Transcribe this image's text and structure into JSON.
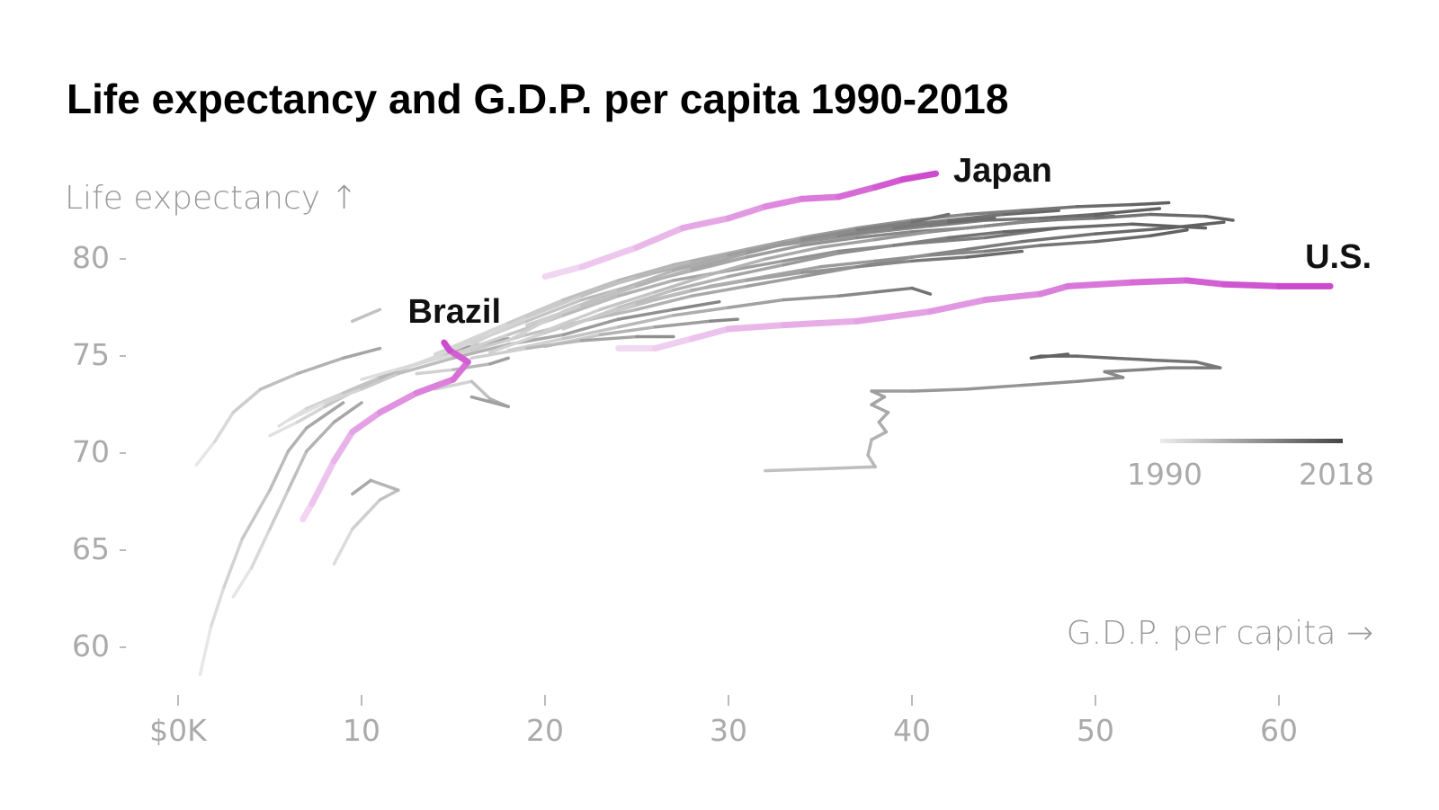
{
  "chart_data": {
    "type": "line",
    "title": "Life expectancy and G.D.P. per capita 1990-2018",
    "xlabel": "G.D.P. per capita →",
    "ylabel": "Life expectancy ↑",
    "xlim": [
      0,
      65
    ],
    "ylim": [
      58,
      83
    ],
    "x_ticks": [
      {
        "value": 0,
        "label": "$0K"
      },
      {
        "value": 10,
        "label": "10"
      },
      {
        "value": 20,
        "label": "20"
      },
      {
        "value": 30,
        "label": "30"
      },
      {
        "value": 40,
        "label": "40"
      },
      {
        "value": 50,
        "label": "50"
      },
      {
        "value": 60,
        "label": "60"
      }
    ],
    "y_ticks": [
      {
        "value": 60,
        "label": "60"
      },
      {
        "value": 65,
        "label": "65"
      },
      {
        "value": 70,
        "label": "70"
      },
      {
        "value": 75,
        "label": "75"
      },
      {
        "value": 80,
        "label": "80"
      }
    ],
    "color_legend": {
      "start_label": "1990",
      "end_label": "2018",
      "start_color": "#ececec",
      "end_color": "#444444"
    },
    "highlight_color": "#cc44cc",
    "highlighted": [
      {
        "name": "Japan",
        "points": [
          [
            20,
            79
          ],
          [
            22,
            79.5
          ],
          [
            25,
            80.5
          ],
          [
            27.5,
            81.5
          ],
          [
            30,
            82
          ],
          [
            32,
            82.6
          ],
          [
            34,
            83
          ],
          [
            36,
            83.1
          ],
          [
            38,
            83.6
          ],
          [
            39.5,
            84
          ],
          [
            41.3,
            84.3
          ]
        ]
      },
      {
        "name": "U.S.",
        "points": [
          [
            24,
            75.3
          ],
          [
            26,
            75.3
          ],
          [
            28,
            75.8
          ],
          [
            30,
            76.3
          ],
          [
            33,
            76.5
          ],
          [
            37,
            76.7
          ],
          [
            41,
            77.2
          ],
          [
            44,
            77.8
          ],
          [
            47,
            78.1
          ],
          [
            48.5,
            78.5
          ],
          [
            52,
            78.7
          ],
          [
            55,
            78.8
          ],
          [
            57,
            78.6
          ],
          [
            60,
            78.5
          ],
          [
            62.8,
            78.5
          ]
        ]
      },
      {
        "name": "Brazil",
        "points": [
          [
            6.8,
            66.5
          ],
          [
            7.3,
            67.3
          ],
          [
            8.5,
            69.5
          ],
          [
            9.5,
            71
          ],
          [
            11,
            72
          ],
          [
            13,
            73
          ],
          [
            15,
            73.7
          ],
          [
            15.8,
            74.6
          ],
          [
            14.8,
            75.2
          ],
          [
            14.5,
            75.6
          ]
        ]
      }
    ],
    "other_series": [
      [
        [
          1.2,
          58.5
        ],
        [
          1.8,
          61
        ],
        [
          2.5,
          63
        ],
        [
          3.5,
          65.5
        ],
        [
          5,
          68
        ],
        [
          6,
          70
        ],
        [
          7,
          71.2
        ],
        [
          9,
          72.5
        ]
      ],
      [
        [
          3,
          62.5
        ],
        [
          4,
          64
        ],
        [
          5,
          66
        ],
        [
          6,
          68
        ],
        [
          7,
          70
        ],
        [
          8.5,
          71.5
        ],
        [
          10,
          72.5
        ]
      ],
      [
        [
          1,
          69.3
        ],
        [
          2,
          70.5
        ],
        [
          3,
          72
        ],
        [
          4.5,
          73.2
        ],
        [
          6.5,
          74
        ],
        [
          9,
          74.8
        ],
        [
          11,
          75.3
        ]
      ],
      [
        [
          8.5,
          64.2
        ],
        [
          9.5,
          66
        ],
        [
          11,
          67.5
        ],
        [
          12,
          68
        ],
        [
          10.5,
          68.5
        ],
        [
          9.5,
          67.8
        ]
      ],
      [
        [
          9.5,
          76.7
        ],
        [
          11,
          77.3
        ]
      ],
      [
        [
          5,
          70.8
        ],
        [
          6.5,
          71.5
        ],
        [
          8,
          72.3
        ],
        [
          10,
          73.3
        ],
        [
          12,
          74.2
        ],
        [
          14,
          74.8
        ],
        [
          16,
          75.3
        ]
      ],
      [
        [
          5.5,
          71.3
        ],
        [
          7,
          72.2
        ],
        [
          9,
          73
        ],
        [
          11,
          73.8
        ],
        [
          13,
          74.5
        ],
        [
          15.5,
          75.3
        ],
        [
          18,
          75.8
        ]
      ],
      [
        [
          6,
          71.6
        ],
        [
          8,
          72.5
        ],
        [
          10,
          73.2
        ],
        [
          12,
          74
        ],
        [
          15,
          74.8
        ],
        [
          18,
          75.5
        ],
        [
          21,
          76
        ],
        [
          24,
          76.8
        ],
        [
          27,
          77.3
        ],
        [
          29.5,
          77.7
        ]
      ],
      [
        [
          10,
          73.7
        ],
        [
          13,
          74.5
        ],
        [
          16,
          75.2
        ],
        [
          19,
          76
        ],
        [
          22,
          76.7
        ],
        [
          25,
          77.3
        ],
        [
          28,
          78
        ],
        [
          31,
          78.5
        ],
        [
          34,
          79
        ],
        [
          37,
          79.5
        ],
        [
          40,
          80
        ],
        [
          43,
          80.4
        ],
        [
          46,
          80.8
        ],
        [
          50,
          81.2
        ],
        [
          54,
          81.5
        ],
        [
          57,
          81.8
        ]
      ],
      [
        [
          12,
          74.2
        ],
        [
          15,
          75
        ],
        [
          18,
          76
        ],
        [
          21,
          77
        ],
        [
          24,
          78
        ],
        [
          27,
          78.8
        ],
        [
          30,
          79.3
        ],
        [
          33,
          79.8
        ],
        [
          36,
          80.3
        ],
        [
          40,
          80.7
        ],
        [
          44,
          81
        ],
        [
          48,
          81.5
        ],
        [
          52,
          81.7
        ],
        [
          56,
          81.5
        ]
      ],
      [
        [
          13,
          74.5
        ],
        [
          16,
          75.6
        ],
        [
          19,
          76.7
        ],
        [
          22,
          77.8
        ],
        [
          25,
          78.6
        ],
        [
          28,
          79.3
        ],
        [
          31,
          80
        ],
        [
          34,
          80.6
        ],
        [
          37,
          81
        ],
        [
          40,
          81.3
        ],
        [
          43,
          81.5
        ],
        [
          46,
          81.8
        ],
        [
          49,
          82
        ],
        [
          51,
          82.1
        ]
      ],
      [
        [
          14,
          75
        ],
        [
          17,
          76.2
        ],
        [
          20,
          77.4
        ],
        [
          23,
          78.4
        ],
        [
          26,
          79.2
        ],
        [
          29,
          79.9
        ],
        [
          32,
          80.5
        ],
        [
          35,
          80.9
        ],
        [
          38,
          81.3
        ],
        [
          41,
          81.6
        ],
        [
          44,
          81.9
        ],
        [
          47,
          82
        ],
        [
          50,
          82.2
        ],
        [
          53.5,
          82.5
        ]
      ],
      [
        [
          15,
          75.3
        ],
        [
          18,
          76.6
        ],
        [
          21,
          77.8
        ],
        [
          24,
          78.8
        ],
        [
          27,
          79.6
        ],
        [
          30,
          80.2
        ],
        [
          33,
          80.8
        ],
        [
          36,
          81.2
        ],
        [
          39,
          81.6
        ],
        [
          42,
          81.9
        ],
        [
          45,
          82.2
        ],
        [
          48,
          82.4
        ]
      ],
      [
        [
          16,
          75.5
        ],
        [
          19,
          76.9
        ],
        [
          22,
          78
        ],
        [
          25,
          79
        ],
        [
          28,
          79.8
        ],
        [
          31,
          80.4
        ],
        [
          34,
          81
        ],
        [
          37,
          81.5
        ],
        [
          40,
          81.9
        ],
        [
          43,
          82.2
        ],
        [
          46,
          82.4
        ],
        [
          49,
          82.6
        ],
        [
          52,
          82.7
        ],
        [
          54,
          82.8
        ]
      ],
      [
        [
          17,
          75.1
        ],
        [
          20,
          76.1
        ],
        [
          23,
          77
        ],
        [
          26,
          77.8
        ],
        [
          29,
          78.5
        ],
        [
          32,
          79
        ],
        [
          35,
          79.5
        ],
        [
          38,
          79.8
        ],
        [
          41,
          80.1
        ],
        [
          44,
          80.3
        ],
        [
          47,
          80.6
        ],
        [
          50,
          80.8
        ],
        [
          53,
          81.1
        ],
        [
          55,
          81.4
        ]
      ],
      [
        [
          18,
          75.7
        ],
        [
          21,
          77.2
        ],
        [
          24,
          78.3
        ],
        [
          27,
          79.3
        ],
        [
          30,
          80.1
        ],
        [
          33,
          80.7
        ],
        [
          36,
          81.1
        ],
        [
          39,
          81.5
        ],
        [
          42,
          81.8
        ],
        [
          44.5,
          82
        ]
      ],
      [
        [
          19,
          76.5
        ],
        [
          22,
          77.5
        ],
        [
          25,
          78.5
        ],
        [
          28,
          79.4
        ],
        [
          31,
          80.2
        ],
        [
          34,
          80.9
        ],
        [
          37,
          81.4
        ],
        [
          40,
          81.8
        ],
        [
          42,
          82.2
        ]
      ],
      [
        [
          20,
          76.2
        ],
        [
          23,
          77.3
        ],
        [
          26,
          78.2
        ],
        [
          29,
          79.1
        ],
        [
          32,
          79.9
        ],
        [
          35,
          80.5
        ],
        [
          38,
          80.9
        ],
        [
          41,
          81.3
        ],
        [
          44,
          81.6
        ],
        [
          47,
          81.9
        ],
        [
          50,
          82
        ],
        [
          53,
          82.2
        ],
        [
          56,
          82.1
        ],
        [
          57.5,
          81.9
        ]
      ],
      [
        [
          21,
          76.3
        ],
        [
          24,
          77.4
        ],
        [
          27,
          78.3
        ],
        [
          30,
          79
        ],
        [
          33,
          79.6
        ],
        [
          36,
          80.2
        ],
        [
          39,
          80.6
        ],
        [
          42,
          81
        ],
        [
          45,
          81.3
        ],
        [
          48,
          81.5
        ]
      ],
      [
        [
          22,
          76.7
        ],
        [
          25,
          77.6
        ],
        [
          28,
          78.3
        ],
        [
          31,
          78.8
        ],
        [
          34,
          79.2
        ],
        [
          37,
          79.5
        ],
        [
          40,
          79.8
        ],
        [
          43,
          80
        ],
        [
          46,
          80.3
        ]
      ],
      [
        [
          18,
          75.2
        ],
        [
          21,
          75.8
        ],
        [
          24,
          76.4
        ],
        [
          27,
          77
        ],
        [
          30,
          77.4
        ],
        [
          33,
          77.8
        ],
        [
          36,
          78
        ],
        [
          38,
          78.2
        ],
        [
          40,
          78.4
        ],
        [
          41,
          78.1
        ]
      ],
      [
        [
          20,
          75.4
        ],
        [
          23,
          76
        ],
        [
          26,
          76.4
        ],
        [
          29,
          76.7
        ],
        [
          30.5,
          76.8
        ]
      ],
      [
        [
          16,
          74.8
        ],
        [
          19,
          75.3
        ],
        [
          22,
          75.7
        ],
        [
          25,
          75.9
        ],
        [
          27,
          75.9
        ]
      ],
      [
        [
          13,
          74
        ],
        [
          15,
          74.2
        ],
        [
          17,
          74.5
        ],
        [
          18,
          74.8
        ]
      ],
      [
        [
          14,
          73.2
        ],
        [
          16,
          73.6
        ],
        [
          17,
          72.7
        ],
        [
          18,
          72.3
        ],
        [
          16,
          72.8
        ]
      ],
      [
        [
          32,
          69
        ],
        [
          35,
          69.1
        ],
        [
          38,
          69.2
        ],
        [
          37.6,
          69.8
        ],
        [
          37.8,
          70.6
        ],
        [
          38.6,
          71
        ],
        [
          38.2,
          71.5
        ],
        [
          38.7,
          72
        ],
        [
          37.8,
          72.4
        ],
        [
          38.5,
          72.8
        ],
        [
          37.8,
          73.1
        ],
        [
          40,
          73.1
        ],
        [
          43,
          73.2
        ],
        [
          46,
          73.4
        ],
        [
          49,
          73.6
        ],
        [
          51.5,
          73.8
        ],
        [
          50.5,
          74.1
        ],
        [
          52.5,
          74.2
        ],
        [
          54,
          74.3
        ],
        [
          55.5,
          74.3
        ],
        [
          56.8,
          74.3
        ],
        [
          55.5,
          74.6
        ],
        [
          53,
          74.7
        ],
        [
          51,
          74.8
        ],
        [
          49,
          74.9
        ],
        [
          47,
          74.9
        ],
        [
          46.5,
          74.8
        ],
        [
          48.5,
          75
        ]
      ]
    ]
  }
}
